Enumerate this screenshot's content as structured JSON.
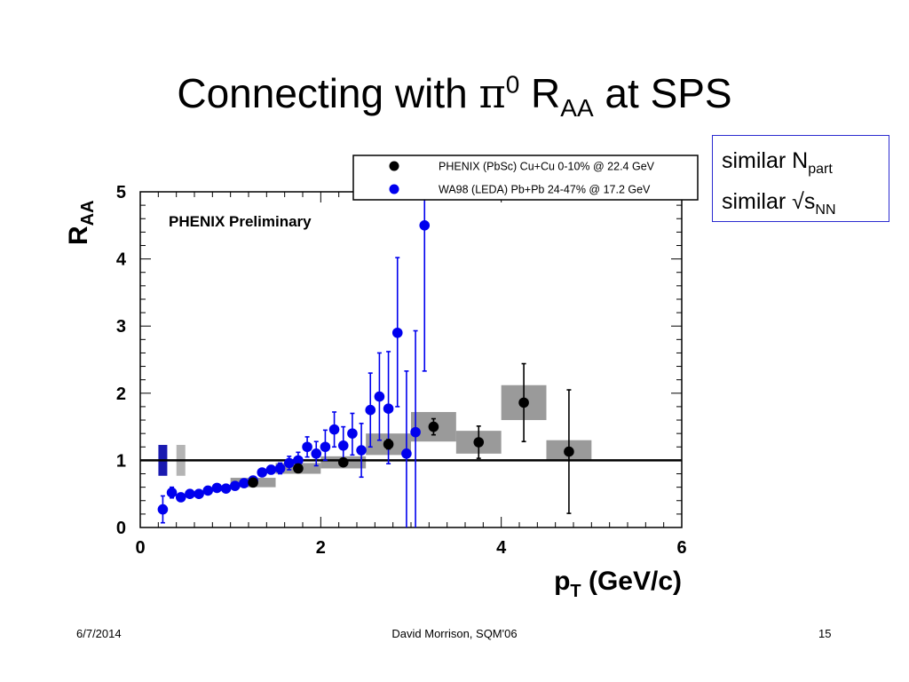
{
  "slide": {
    "title_main": "Connecting with ",
    "title_pi": "π",
    "title_sup": "0",
    "title_r": " R",
    "title_sub": "AA",
    "title_end": " at SPS"
  },
  "note_box": {
    "line1": "similar N",
    "line1_sub": "part",
    "line2": "similar √s",
    "line2_sub": "NN"
  },
  "footer": {
    "date": "6/7/2014",
    "author": "David Morrison, SQM'06",
    "page": "15"
  },
  "chart_data": {
    "type": "scatter",
    "annotation": "PHENIX Preliminary",
    "xlabel": "p",
    "xlabel_sub": "T",
    "xlabel_unit": " (GeV/c)",
    "ylabel": "R",
    "ylabel_sub": "AA",
    "xlim": [
      0,
      6
    ],
    "ylim": [
      0,
      5
    ],
    "xticks": [
      "0",
      "2",
      "4",
      "6"
    ],
    "yticks": [
      "0",
      "1",
      "2",
      "3",
      "4",
      "5"
    ],
    "reference_line_y": 1,
    "legend_placement": "top",
    "legend": [
      {
        "label": "PHENIX (PbSc) Cu+Cu 0-10% @ 22.4 GeV",
        "color": "#000000"
      },
      {
        "label": "WA98 (LEDA)  Pb+Pb 24-47% @ 17.2 GeV",
        "color": "#0000ee"
      }
    ],
    "norm_boxes": [
      {
        "x": 0.25,
        "lo": 0.77,
        "hi": 1.23,
        "color": "#1a1ab0"
      },
      {
        "x": 0.45,
        "lo": 0.77,
        "hi": 1.23,
        "color": "#b4b4b4"
      }
    ],
    "series": [
      {
        "name": "PHENIX (PbSc) Cu+Cu 0-10% @ 22.4 GeV",
        "color": "#000000",
        "points": [
          {
            "x": 1.25,
            "y": 0.67,
            "err": 0.05,
            "sys_lo": 0.6,
            "sys_hi": 0.74,
            "box_x": [
              1.0,
              1.5
            ]
          },
          {
            "x": 1.75,
            "y": 0.88,
            "err": 0.05,
            "sys_lo": 0.8,
            "sys_hi": 0.96,
            "box_x": [
              1.5,
              2.0
            ]
          },
          {
            "x": 2.25,
            "y": 0.97,
            "err": 0.05,
            "sys_lo": 0.88,
            "sys_hi": 1.06,
            "box_x": [
              2.0,
              2.5
            ]
          },
          {
            "x": 2.75,
            "y": 1.24,
            "err": 0.07,
            "sys_lo": 1.08,
            "sys_hi": 1.4,
            "box_x": [
              2.5,
              3.0
            ]
          },
          {
            "x": 3.25,
            "y": 1.5,
            "err": 0.12,
            "sys_lo": 1.28,
            "sys_hi": 1.72,
            "box_x": [
              3.0,
              3.5
            ]
          },
          {
            "x": 3.75,
            "y": 1.27,
            "err": 0.24,
            "sys_lo": 1.1,
            "sys_hi": 1.44,
            "box_x": [
              3.5,
              4.0
            ]
          },
          {
            "x": 4.25,
            "y": 1.86,
            "err": 0.58,
            "sys_lo": 1.6,
            "sys_hi": 2.12,
            "box_x": [
              4.0,
              4.5
            ]
          },
          {
            "x": 4.75,
            "y": 1.13,
            "err": 0.92,
            "sys_lo": 1.0,
            "sys_hi": 1.3,
            "box_x": [
              4.5,
              5.0
            ]
          }
        ]
      },
      {
        "name": "WA98 (LEDA)  Pb+Pb 24-47% @ 17.2 GeV",
        "color": "#0000ee",
        "points": [
          {
            "x": 0.25,
            "y": 0.27,
            "lo": 0.07,
            "hi": 0.47
          },
          {
            "x": 0.35,
            "y": 0.52,
            "lo": 0.44,
            "hi": 0.6
          },
          {
            "x": 0.45,
            "y": 0.45,
            "lo": 0.4,
            "hi": 0.5
          },
          {
            "x": 0.55,
            "y": 0.5,
            "lo": 0.46,
            "hi": 0.54
          },
          {
            "x": 0.65,
            "y": 0.5,
            "lo": 0.46,
            "hi": 0.54
          },
          {
            "x": 0.75,
            "y": 0.55,
            "lo": 0.51,
            "hi": 0.59
          },
          {
            "x": 0.85,
            "y": 0.59,
            "lo": 0.55,
            "hi": 0.63
          },
          {
            "x": 0.95,
            "y": 0.58,
            "lo": 0.54,
            "hi": 0.62
          },
          {
            "x": 1.05,
            "y": 0.62,
            "lo": 0.58,
            "hi": 0.66
          },
          {
            "x": 1.15,
            "y": 0.66,
            "lo": 0.62,
            "hi": 0.7
          },
          {
            "x": 1.25,
            "y": 0.7,
            "lo": 0.66,
            "hi": 0.74
          },
          {
            "x": 1.35,
            "y": 0.82,
            "lo": 0.77,
            "hi": 0.87
          },
          {
            "x": 1.45,
            "y": 0.86,
            "lo": 0.8,
            "hi": 0.92
          },
          {
            "x": 1.55,
            "y": 0.88,
            "lo": 0.8,
            "hi": 0.96
          },
          {
            "x": 1.65,
            "y": 0.96,
            "lo": 0.86,
            "hi": 1.06
          },
          {
            "x": 1.75,
            "y": 1.0,
            "lo": 0.88,
            "hi": 1.12
          },
          {
            "x": 1.85,
            "y": 1.2,
            "lo": 1.05,
            "hi": 1.35
          },
          {
            "x": 1.95,
            "y": 1.1,
            "lo": 0.92,
            "hi": 1.28
          },
          {
            "x": 2.05,
            "y": 1.2,
            "lo": 1.0,
            "hi": 1.45
          },
          {
            "x": 2.15,
            "y": 1.46,
            "lo": 1.2,
            "hi": 1.72
          },
          {
            "x": 2.25,
            "y": 1.22,
            "lo": 0.95,
            "hi": 1.5
          },
          {
            "x": 2.35,
            "y": 1.4,
            "lo": 1.08,
            "hi": 1.7
          },
          {
            "x": 2.45,
            "y": 1.15,
            "lo": 0.75,
            "hi": 1.55
          },
          {
            "x": 2.55,
            "y": 1.75,
            "lo": 1.2,
            "hi": 2.3
          },
          {
            "x": 2.65,
            "y": 1.95,
            "lo": 1.3,
            "hi": 2.6
          },
          {
            "x": 2.75,
            "y": 1.77,
            "lo": 0.95,
            "hi": 2.62
          },
          {
            "x": 2.85,
            "y": 2.9,
            "lo": 1.8,
            "hi": 4.02
          },
          {
            "x": 2.95,
            "y": 1.1,
            "lo": 0.0,
            "hi": 2.33
          },
          {
            "x": 3.05,
            "y": 1.42,
            "lo": 0.0,
            "hi": 2.93
          },
          {
            "x": 3.15,
            "y": 4.5,
            "lo": 2.33,
            "hi": 5.0
          }
        ]
      }
    ]
  }
}
